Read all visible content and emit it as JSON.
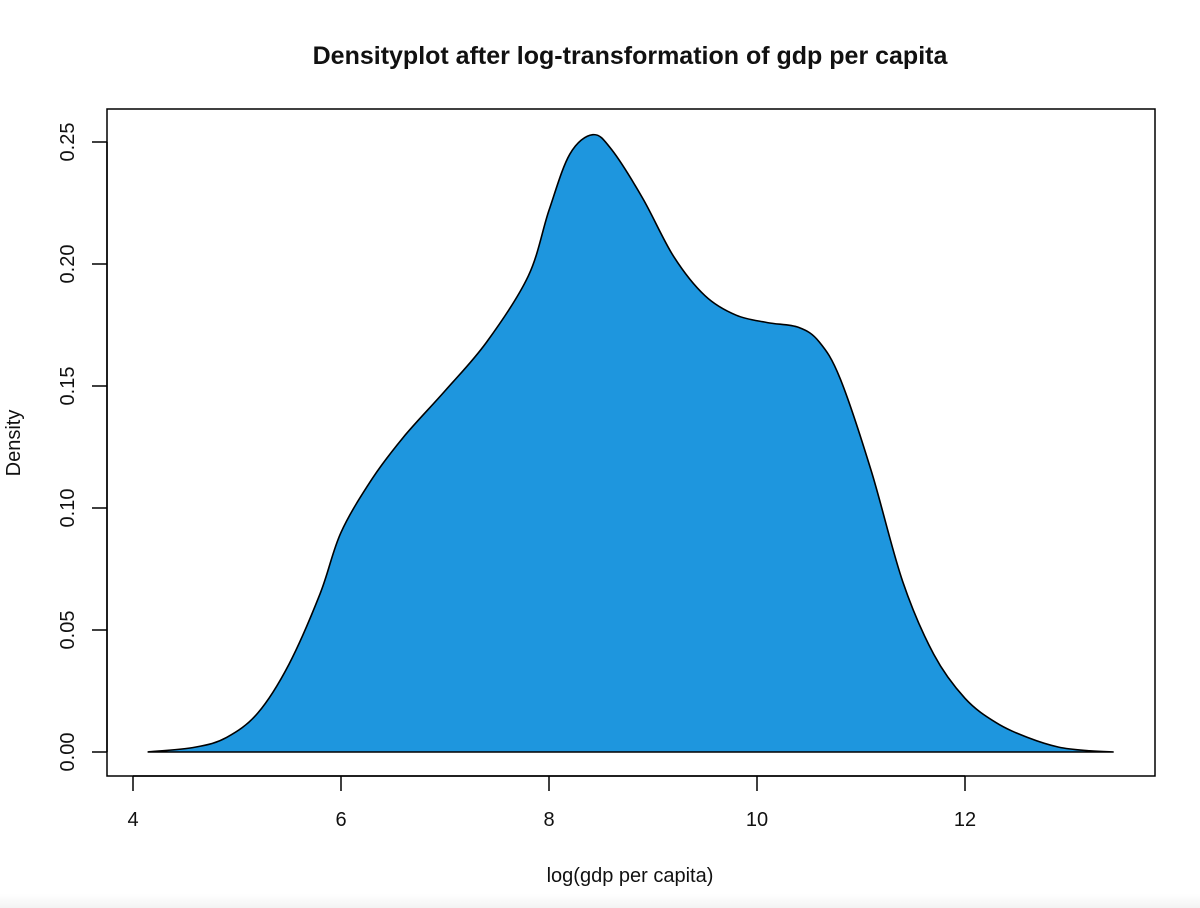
{
  "chart_data": {
    "type": "area",
    "title": "Densityplot after log-transformation of gdp per capita",
    "xlabel": "log(gdp per capita)",
    "ylabel": "Density",
    "xlim": [
      4,
      13.8
    ],
    "ylim": [
      -0.01,
      0.26
    ],
    "xticks": [
      4,
      6,
      8,
      10,
      12
    ],
    "xtick_labels": [
      "4",
      "6",
      "8",
      "10",
      "12"
    ],
    "yticks": [
      0,
      0.05,
      0.1,
      0.15,
      0.2,
      0.25
    ],
    "ytick_labels": [
      "0.00",
      "0.05",
      "0.10",
      "0.15",
      "0.20",
      "0.25"
    ],
    "fill_color": "#1e96de",
    "line_color": "#000000",
    "grid": false,
    "series": [
      {
        "x": [
          4.14,
          4.6,
          4.9,
          5.2,
          5.5,
          5.8,
          6.0,
          6.3,
          6.6,
          7.0,
          7.4,
          7.8,
          8.0,
          8.2,
          8.42,
          8.6,
          8.9,
          9.2,
          9.5,
          9.8,
          10.1,
          10.4,
          10.6,
          10.8,
          11.1,
          11.4,
          11.7,
          12.0,
          12.3,
          12.6,
          12.9,
          13.2,
          13.43
        ],
        "y": [
          0.0,
          0.002,
          0.006,
          0.016,
          0.036,
          0.065,
          0.09,
          0.112,
          0.129,
          0.148,
          0.168,
          0.195,
          0.222,
          0.245,
          0.253,
          0.247,
          0.227,
          0.203,
          0.187,
          0.179,
          0.176,
          0.174,
          0.168,
          0.153,
          0.115,
          0.07,
          0.04,
          0.022,
          0.012,
          0.006,
          0.002,
          0.0005,
          0.0
        ]
      }
    ]
  }
}
